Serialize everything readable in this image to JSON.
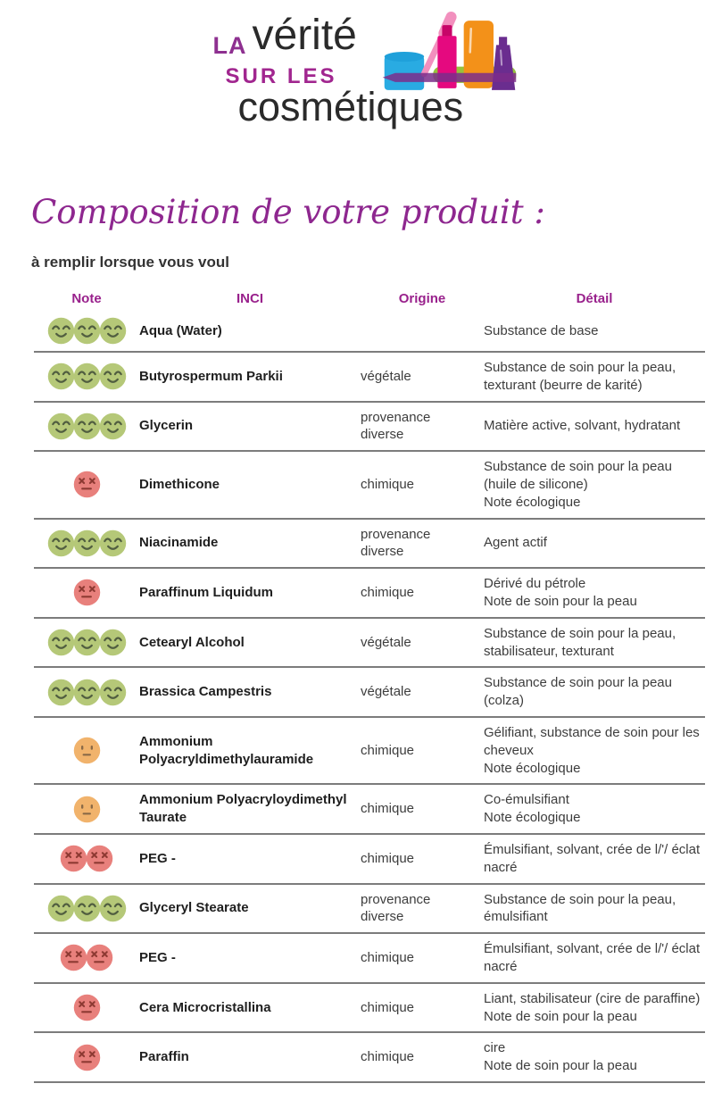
{
  "logo": {
    "word_la": "LA",
    "word_verite": "vérité",
    "word_sur_les": "SUR LES",
    "word_cosmetiques": "cosmétiques",
    "colors": {
      "la_purple": "#8e3090",
      "sur_les_magenta": "#a1268f",
      "text_black": "#2a2a2a",
      "jar_blue": "#29abe2",
      "wand_pink": "#f290be",
      "tube_magenta": "#e5097f",
      "tube_orange": "#f39119",
      "bottle_purple": "#6a2d8f",
      "smear_green": "#97c23c",
      "smear_purple": "#7b2d8b"
    }
  },
  "page_title": "Composition de votre produit :",
  "subtitle": "à remplir lorsque vous voul",
  "colors": {
    "accent_purple": "#99218c",
    "separator_gray": "#7c7c7c"
  },
  "faces": {
    "happy": {
      "label": "happy-face",
      "fill": "#b5c878",
      "stroke": "#515e40"
    },
    "neutral": {
      "label": "neutral-face",
      "fill": "#f1b36c",
      "stroke": "#8a6a47"
    },
    "dead": {
      "label": "dead-face",
      "fill": "#e8807c",
      "stroke": "#8e3a33"
    }
  },
  "table": {
    "headers": [
      "Note",
      "INCI",
      "Origine",
      "Détail"
    ],
    "rows": [
      {
        "note": {
          "face": "happy",
          "count": 3
        },
        "inci": "Aqua (Water)",
        "origine": "",
        "detail": [
          "Substance de base"
        ]
      },
      {
        "note": {
          "face": "happy",
          "count": 3
        },
        "inci": "Butyrospermum Parkii",
        "origine": "végétale",
        "detail": [
          "Substance de soin pour la peau, texturant (beurre de karité)"
        ]
      },
      {
        "note": {
          "face": "happy",
          "count": 3
        },
        "inci": "Glycerin",
        "origine": "provenance diverse",
        "detail": [
          "Matière active, solvant, hydratant"
        ]
      },
      {
        "note": {
          "face": "dead",
          "count": 1
        },
        "inci": "Dimethicone",
        "origine": "chimique",
        "detail": [
          "Substance de soin pour la peau (huile de silicone)",
          "Note écologique"
        ]
      },
      {
        "note": {
          "face": "happy",
          "count": 3
        },
        "inci": "Niacinamide",
        "origine": "provenance diverse",
        "detail": [
          "Agent actif"
        ]
      },
      {
        "note": {
          "face": "dead",
          "count": 1
        },
        "inci": "Paraffinum Liquidum",
        "origine": "chimique",
        "detail": [
          "Dérivé du pétrole",
          "Note de soin pour la peau"
        ]
      },
      {
        "note": {
          "face": "happy",
          "count": 3
        },
        "inci": "Cetearyl Alcohol",
        "origine": "végétale",
        "detail": [
          "Substance de soin pour la peau, stabilisateur, texturant"
        ]
      },
      {
        "note": {
          "face": "happy",
          "count": 3
        },
        "inci": "Brassica Campestris",
        "origine": "végétale",
        "detail": [
          "Substance de soin pour la peau (colza)"
        ]
      },
      {
        "note": {
          "face": "neutral",
          "count": 1
        },
        "inci": "Ammonium Polyacryldimethylauramide",
        "origine": "chimique",
        "detail": [
          "Gélifiant, substance de soin pour les cheveux",
          "Note écologique"
        ]
      },
      {
        "note": {
          "face": "neutral",
          "count": 1
        },
        "inci": "Ammonium Polyacryloydimethyl Taurate",
        "origine": "chimique",
        "detail": [
          "Co-émulsifiant",
          "Note écologique"
        ]
      },
      {
        "note": {
          "face": "dead",
          "count": 2
        },
        "inci": "PEG -",
        "origine": "chimique",
        "detail": [
          "Émulsifiant, solvant, crée de l/'/ éclat nacré"
        ]
      },
      {
        "note": {
          "face": "happy",
          "count": 3
        },
        "inci": "Glyceryl Stearate",
        "origine": "provenance diverse",
        "detail": [
          "Substance de soin pour la peau, émulsifiant"
        ]
      },
      {
        "note": {
          "face": "dead",
          "count": 2
        },
        "inci": "PEG -",
        "origine": "chimique",
        "detail": [
          "Émulsifiant, solvant, crée de l/'/ éclat nacré"
        ]
      },
      {
        "note": {
          "face": "dead",
          "count": 1
        },
        "inci": "Cera Microcristallina",
        "origine": "chimique",
        "detail": [
          "Liant, stabilisateur (cire de paraffine)",
          "Note de soin pour la peau"
        ]
      },
      {
        "note": {
          "face": "dead",
          "count": 1
        },
        "inci": "Paraffin",
        "origine": "chimique",
        "detail": [
          "cire",
          "Note de soin pour la peau"
        ]
      }
    ]
  }
}
